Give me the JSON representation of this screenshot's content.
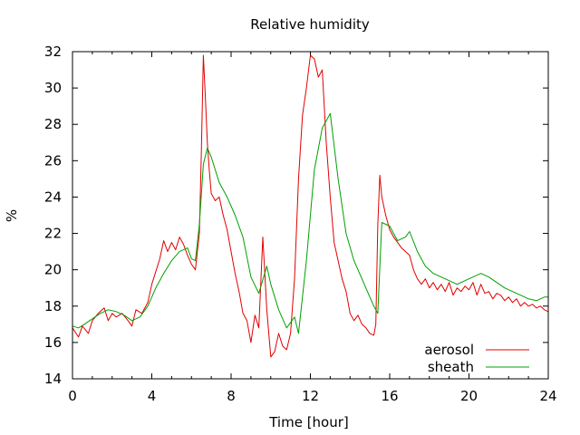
{
  "chart_data": {
    "type": "line",
    "title": "Relative humidity",
    "xlabel": "Time [hour]",
    "ylabel": "%",
    "xlim": [
      0,
      24
    ],
    "ylim": [
      14,
      32
    ],
    "xticks": [
      "0",
      "4",
      "8",
      "12",
      "16",
      "20",
      "24"
    ],
    "yticks": [
      "14",
      "16",
      "18",
      "20",
      "22",
      "24",
      "26",
      "28",
      "30",
      "32"
    ],
    "grid": false,
    "legend_position": "bottom-right",
    "series": [
      {
        "name": "aerosol",
        "color": "#e00000",
        "x": [
          0,
          0.3,
          0.5,
          0.8,
          1,
          1.3,
          1.6,
          1.8,
          2,
          2.2,
          2.5,
          2.8,
          3.0,
          3.2,
          3.5,
          3.8,
          4,
          4.2,
          4.4,
          4.6,
          4.8,
          5.0,
          5.2,
          5.4,
          5.6,
          5.8,
          6.0,
          6.2,
          6.4,
          6.5,
          6.6,
          6.7,
          6.8,
          6.9,
          7.0,
          7.2,
          7.4,
          7.6,
          7.8,
          8.0,
          8.2,
          8.4,
          8.6,
          8.8,
          9.0,
          9.2,
          9.4,
          9.6,
          9.8,
          9.9,
          10.0,
          10.2,
          10.4,
          10.6,
          10.8,
          11.0,
          11.2,
          11.4,
          11.6,
          11.8,
          12.0,
          12.2,
          12.4,
          12.6,
          12.8,
          13.0,
          13.2,
          13.4,
          13.6,
          13.8,
          14.0,
          14.2,
          14.4,
          14.6,
          14.8,
          15.0,
          15.2,
          15.3,
          15.4,
          15.5,
          15.6,
          15.8,
          16.0,
          16.2,
          16.4,
          16.6,
          16.8,
          17.0,
          17.2,
          17.4,
          17.6,
          17.8,
          18.0,
          18.2,
          18.4,
          18.6,
          18.8,
          19.0,
          19.2,
          19.4,
          19.6,
          19.8,
          20.0,
          20.2,
          20.4,
          20.6,
          20.8,
          21.0,
          21.2,
          21.4,
          21.6,
          21.8,
          22.0,
          22.2,
          22.4,
          22.6,
          22.8,
          23.0,
          23.2,
          23.4,
          23.6,
          23.8,
          24.0
        ],
        "y": [
          16.8,
          16.3,
          16.9,
          16.5,
          17.2,
          17.6,
          17.9,
          17.2,
          17.6,
          17.4,
          17.6,
          17.2,
          16.9,
          17.8,
          17.6,
          18.2,
          19.2,
          19.9,
          20.6,
          21.6,
          21.0,
          21.5,
          21.1,
          21.8,
          21.4,
          20.8,
          20.3,
          20.0,
          22.0,
          26.5,
          31.8,
          29.5,
          27.0,
          25.5,
          24.2,
          23.8,
          24.0,
          23.0,
          22.2,
          21.0,
          19.8,
          18.8,
          17.6,
          17.2,
          16.0,
          17.5,
          16.8,
          21.8,
          17.8,
          16.5,
          15.2,
          15.5,
          16.5,
          15.8,
          15.6,
          16.5,
          19.5,
          25.0,
          28.5,
          30.0,
          31.8,
          31.6,
          30.6,
          31.0,
          27.0,
          24.0,
          21.5,
          20.5,
          19.5,
          18.8,
          17.6,
          17.2,
          17.5,
          17.0,
          16.8,
          16.5,
          16.4,
          17.0,
          22.5,
          25.2,
          24.0,
          23.0,
          22.2,
          21.8,
          21.5,
          21.2,
          21.0,
          20.8,
          20.0,
          19.5,
          19.2,
          19.5,
          19.0,
          19.3,
          18.9,
          19.2,
          18.8,
          19.3,
          18.6,
          19.0,
          18.8,
          19.1,
          18.9,
          19.3,
          18.6,
          19.2,
          18.7,
          18.8,
          18.4,
          18.7,
          18.6,
          18.3,
          18.5,
          18.2,
          18.4,
          18.0,
          18.2,
          18.0,
          18.1,
          17.9,
          18.0,
          17.8,
          17.7
        ]
      },
      {
        "name": "sheath",
        "color": "#00a000",
        "x": [
          0,
          0.3,
          0.6,
          1,
          1.4,
          1.8,
          2.2,
          2.6,
          3.0,
          3.4,
          3.8,
          4.2,
          4.6,
          5.0,
          5.4,
          5.8,
          6.0,
          6.2,
          6.4,
          6.6,
          6.8,
          7.0,
          7.4,
          7.8,
          8.2,
          8.6,
          9.0,
          9.4,
          9.8,
          10.0,
          10.4,
          10.8,
          11.2,
          11.4,
          11.8,
          12.2,
          12.6,
          12.8,
          13.0,
          13.4,
          13.8,
          14.2,
          14.6,
          15.0,
          15.2,
          15.4,
          15.6,
          16.0,
          16.4,
          16.8,
          17.0,
          17.4,
          17.8,
          18.2,
          18.6,
          19.0,
          19.4,
          19.8,
          20.2,
          20.6,
          21.0,
          21.4,
          21.8,
          22.2,
          22.6,
          23.0,
          23.4,
          23.8,
          24.0
        ],
        "y": [
          16.9,
          16.8,
          17.0,
          17.3,
          17.6,
          17.8,
          17.7,
          17.5,
          17.2,
          17.4,
          18.0,
          19.0,
          19.8,
          20.5,
          21.0,
          21.2,
          20.6,
          20.5,
          22.5,
          25.8,
          26.7,
          26.2,
          24.8,
          24.0,
          23.0,
          21.8,
          19.6,
          18.7,
          20.2,
          19.2,
          17.8,
          16.8,
          17.4,
          16.5,
          20.5,
          25.5,
          27.8,
          28.2,
          28.6,
          25.0,
          22.0,
          20.5,
          19.5,
          18.5,
          18.0,
          17.6,
          22.6,
          22.4,
          21.6,
          21.8,
          22.1,
          21.0,
          20.2,
          19.8,
          19.6,
          19.4,
          19.2,
          19.4,
          19.6,
          19.8,
          19.6,
          19.3,
          19.0,
          18.8,
          18.6,
          18.4,
          18.3,
          18.5,
          18.5
        ]
      }
    ]
  }
}
